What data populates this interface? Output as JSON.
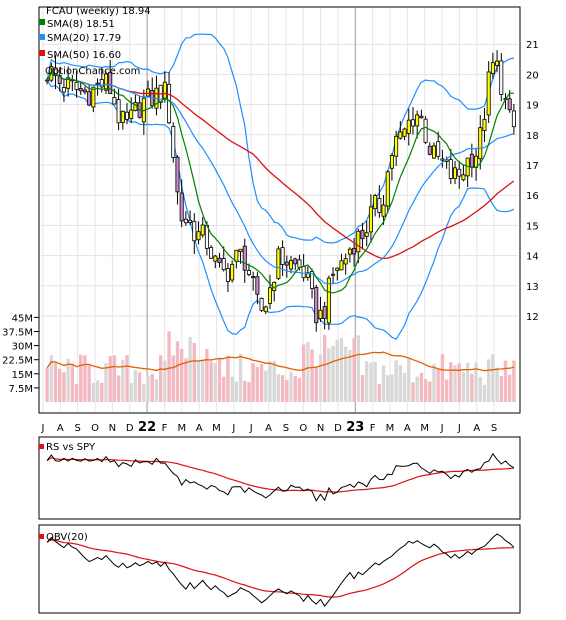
{
  "chart_data": {
    "type": "candlestick",
    "symbol_label": "FCAU (weekly) 18.94",
    "watermark": "OptionChance.com",
    "legend": [
      {
        "label": "SMA(8) 18.51",
        "color": "#008000"
      },
      {
        "label": "SMA(20) 17.79",
        "color": "#1e90ff"
      },
      {
        "label": "SMA(50) 16.60",
        "color": "#dd1111"
      }
    ],
    "price_axis": {
      "ticks": [
        "12",
        "13",
        "14",
        "15",
        "16",
        "17",
        "18",
        "19",
        "20",
        "21"
      ],
      "range": [
        11,
        22
      ]
    },
    "volume_axis": {
      "ticks": [
        "7.5M",
        "15M",
        "22.5M",
        "30M",
        "37.5M",
        "45M"
      ],
      "range": [
        0,
        45
      ]
    },
    "x_axis": {
      "labels": [
        "J",
        "A",
        "S",
        "O",
        "N",
        "D",
        "22",
        "F",
        "M",
        "A",
        "M",
        "J",
        "J",
        "A",
        "S",
        "O",
        "N",
        "D",
        "23",
        "F",
        "M",
        "A",
        "M",
        "J",
        "J",
        "A",
        "S"
      ],
      "year_labels": [
        "22",
        "23"
      ]
    },
    "monthly_close": [
      20.1,
      19.6,
      19.4,
      19.7,
      18.3,
      19.1,
      19.4,
      15.2,
      14.6,
      13.4,
      14.0,
      12.2,
      13.9,
      13.6,
      12.0,
      13.7,
      14.6,
      15.6,
      17.8,
      18.7,
      17.2,
      16.6,
      17.4,
      20.3,
      18.2
    ],
    "panels": [
      {
        "label": "RS vs SPY"
      },
      {
        "label": "OBV(20)"
      }
    ],
    "colors": {
      "up": "#ffff00",
      "down": "#c0c0c0",
      "up_filled": "#cc88cc",
      "price_line": "#000000",
      "volume_up": "#f4b8c0",
      "volume_down": "#d8d8d8",
      "volume_sma": "#e06000",
      "rs_line": "#000000",
      "rs_sma": "#dd1111",
      "obv_line": "#000000",
      "obv_sma": "#dd1111"
    }
  }
}
